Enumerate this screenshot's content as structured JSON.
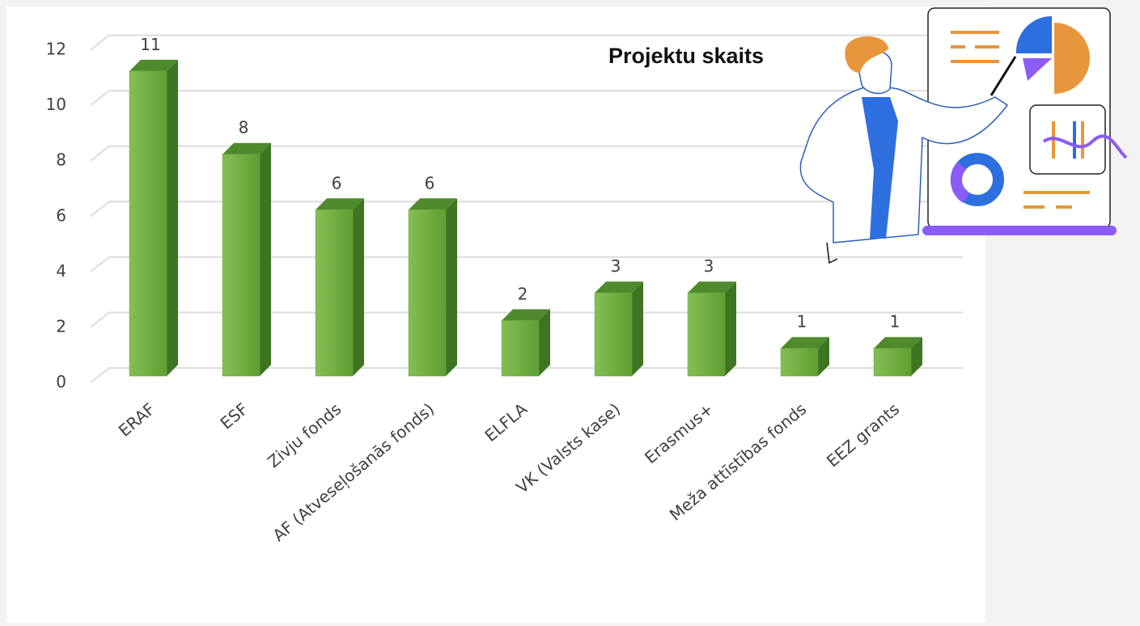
{
  "chart_data": {
    "type": "bar3d",
    "title": "Projektu skaits",
    "categories": [
      "ERAF",
      "ESF",
      "Zivju fonds",
      "AF (Atveseļošanās fonds)",
      "ELFLA",
      "VK (Valsts kase)",
      "Erasmus+",
      "Meža attīstības fonds",
      "EEZ grants"
    ],
    "values": [
      11,
      8,
      6,
      6,
      2,
      3,
      3,
      1,
      1
    ],
    "color": "#6aaa3a",
    "ylim": [
      0,
      12
    ],
    "yticks": [
      0,
      2,
      4,
      6,
      8,
      10,
      12
    ],
    "grid": true
  }
}
